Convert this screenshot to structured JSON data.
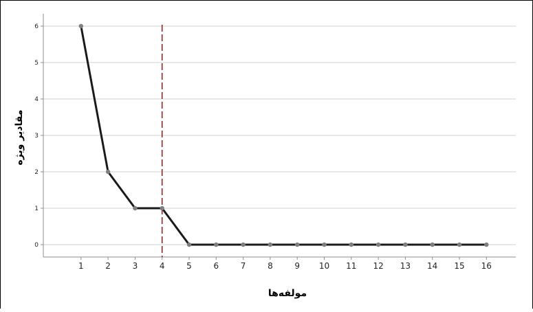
{
  "chart_data": {
    "type": "line",
    "title": "",
    "xlabel": "مولفه‌ها",
    "ylabel": "مقادیر ویژه",
    "x": [
      1,
      2,
      3,
      4,
      5,
      6,
      7,
      8,
      9,
      10,
      11,
      12,
      13,
      14,
      15,
      16
    ],
    "y": [
      6,
      2,
      1,
      1,
      0,
      0,
      0,
      0,
      0,
      0,
      0,
      0,
      0,
      0,
      0,
      0
    ],
    "x_ticks": [
      "1",
      "2",
      "3",
      "4",
      "5",
      "6",
      "7",
      "8",
      "9",
      "10",
      "11",
      "12",
      "13",
      "14",
      "15",
      "16"
    ],
    "y_ticks": [
      "0",
      "1",
      "2",
      "3",
      "4",
      "5",
      "6"
    ],
    "ylim": [
      0,
      6
    ],
    "xlim": [
      0,
      17
    ],
    "reference_line_x": 4,
    "grid": "horizontal",
    "legend": "none",
    "colors": {
      "line": "#1a1a1a",
      "marker": "#7f7f7f",
      "reference_line": "#8b1a1a",
      "grid": "#d0d0d0",
      "axis": "#8c8c8c"
    }
  }
}
